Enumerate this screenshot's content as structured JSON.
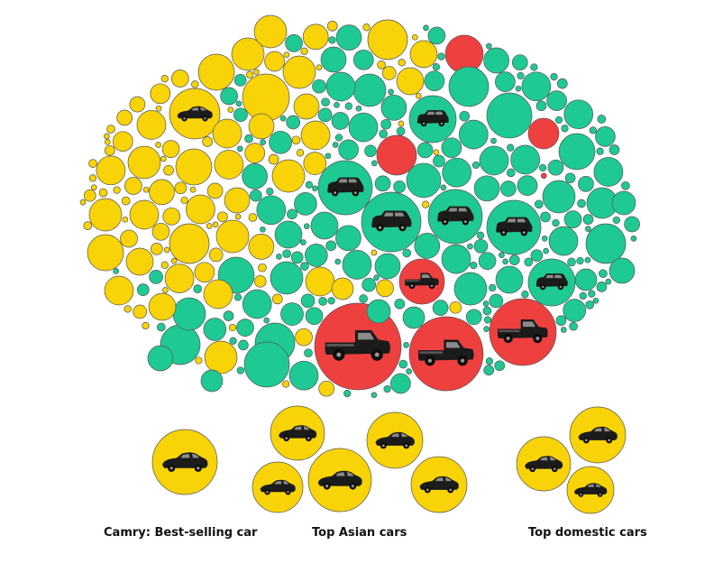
{
  "captions": {
    "camry": "Camry: Best-selling car",
    "asian": "Top Asian cars",
    "domestic": "Top domestic cars"
  },
  "colors": {
    "car": "#f7d308",
    "suv": "#1fc993",
    "truck": "#ef4040",
    "outline": "#555555"
  }
}
